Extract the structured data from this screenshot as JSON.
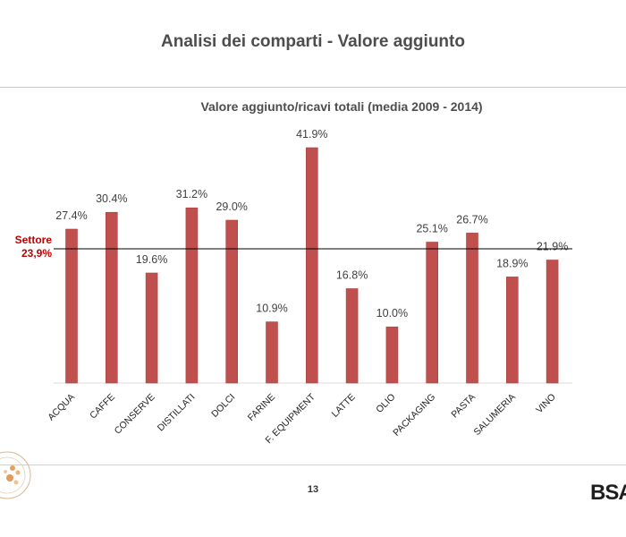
{
  "slide": {
    "title": "Analisi dei comparti - Valore aggiunto",
    "page_number": "13",
    "brand": "BSA"
  },
  "colors": {
    "bar": "#c0504d",
    "bar_edge": "#a9423f",
    "reference_line": "#000000",
    "reference_label": "#c00000"
  },
  "chart_data": {
    "type": "bar",
    "title": "Valore aggiunto/ricavi totali (media 2009 - 2014)",
    "xlabel": "",
    "ylabel": "",
    "ylim": [
      0,
      45
    ],
    "grid": false,
    "categories": [
      "ACQUA",
      "CAFFE",
      "CONSERVE",
      "DISTILLATI",
      "DOLCI",
      "FARINE",
      "F. EQUIPMENT",
      "LATTE",
      "OLIO",
      "PACKAGING",
      "PASTA",
      "SALUMERIA",
      "VINO"
    ],
    "values": [
      27.4,
      30.4,
      19.6,
      31.2,
      29.0,
      10.9,
      41.9,
      16.8,
      10.0,
      25.1,
      26.7,
      18.9,
      21.9
    ],
    "value_labels": [
      "27.4%",
      "30.4%",
      "19.6%",
      "31.2%",
      "29.0%",
      "10.9%",
      "41.9%",
      "16.8%",
      "10.0%",
      "25.1%",
      "26.7%",
      "18.9%",
      "21.9%"
    ],
    "reference_line": {
      "value": 23.9,
      "label_line1": "Settore",
      "label_line2": "23,9%"
    }
  }
}
